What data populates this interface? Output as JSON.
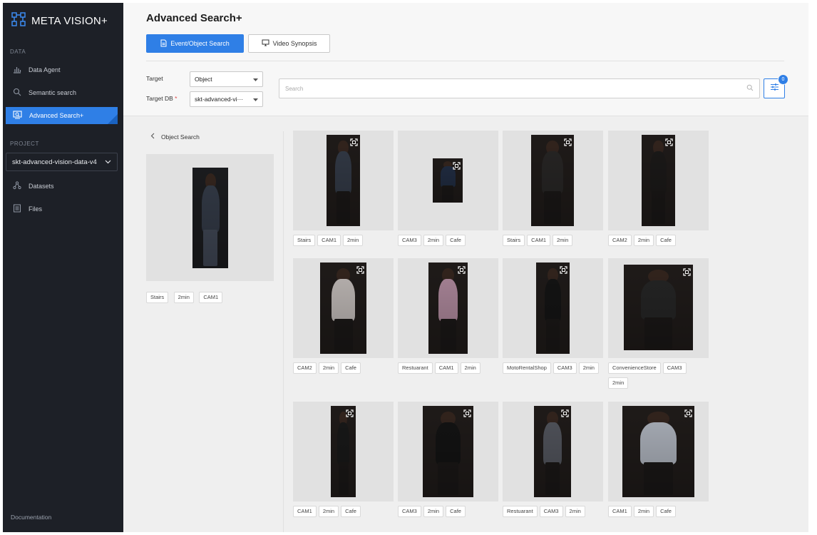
{
  "sidebar": {
    "brand": "META VISION+",
    "data_section": "DATA",
    "nav": [
      {
        "label": "Data Agent",
        "icon": "bar-chart-icon"
      },
      {
        "label": "Semantic search",
        "icon": "search-icon"
      },
      {
        "label": "Advanced Search+",
        "icon": "image-search-icon"
      }
    ],
    "project_section": "PROJECT",
    "project_name": "skt-advanced-vision-data-v4",
    "project_nav": [
      {
        "label": "Datasets",
        "icon": "datasets-icon"
      },
      {
        "label": "Files",
        "icon": "files-icon"
      }
    ],
    "documentation": "Documentation"
  },
  "header": {
    "title": "Advanced Search+",
    "tabs": [
      {
        "label": "Event/Object Search",
        "icon": "document-icon"
      },
      {
        "label": "Video Synopsis",
        "icon": "monitor-icon"
      }
    ],
    "target_label": "Target",
    "target_value": "Object",
    "target_db_label": "Target DB",
    "target_db_required": "*",
    "target_db_value": "skt-advanced-vi···",
    "search_placeholder": "Search",
    "filter_count": "0"
  },
  "query": {
    "back_label": "Object Search",
    "tags": [
      "Stairs",
      "2min",
      "CAM1"
    ]
  },
  "results": [
    {
      "tags": [
        "Stairs",
        "CAM1",
        "2min"
      ],
      "color": "#3a4250"
    },
    {
      "tags": [
        "CAM3",
        "2min",
        "Cafe"
      ],
      "color": "#25324a"
    },
    {
      "tags": [
        "Stairs",
        "CAM1",
        "2min"
      ],
      "color": "#2d2b2a"
    },
    {
      "tags": [
        "CAM2",
        "2min",
        "Cafe"
      ],
      "color": "#1f1d1c"
    },
    {
      "tags": [
        "CAM2",
        "2min",
        "Cafe"
      ],
      "color": "#d9d2cf"
    },
    {
      "tags": [
        "Restuarant",
        "CAM1",
        "2min"
      ],
      "color": "#c49ab0"
    },
    {
      "tags": [
        "MotoRentalShop",
        "CAM3",
        "2min"
      ],
      "color": "#171717"
    },
    {
      "tags": [
        "ConvenienceStore",
        "CAM3",
        "2min"
      ],
      "color": "#2a2a2a"
    },
    {
      "tags": [
        "CAM1",
        "2min",
        "Cafe"
      ],
      "color": "#1c1c1c"
    },
    {
      "tags": [
        "CAM3",
        "2min",
        "Cafe"
      ],
      "color": "#161616"
    },
    {
      "tags": [
        "Restuarant",
        "CAM3",
        "2min"
      ],
      "color": "#5d6069"
    },
    {
      "tags": [
        "CAM1",
        "2min",
        "Cafe"
      ],
      "color": "#c5cbd6"
    }
  ]
}
